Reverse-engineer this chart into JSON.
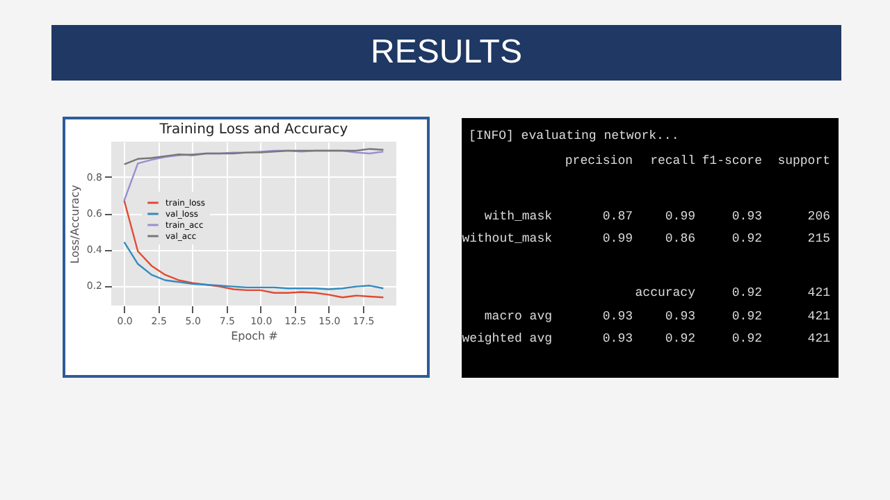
{
  "chart_data": [
    {
      "type": "line",
      "title": "Training Loss and Accuracy",
      "xlabel": "Epoch #",
      "ylabel": "Loss/Accuracy",
      "x": [
        0,
        1,
        2,
        3,
        4,
        5,
        6,
        7,
        8,
        9,
        10,
        11,
        12,
        13,
        14,
        15,
        16,
        17,
        18,
        19
      ],
      "series": [
        {
          "name": "train_loss",
          "color": "#e24a33",
          "values": [
            0.67,
            0.39,
            0.31,
            0.26,
            0.23,
            0.215,
            0.205,
            0.195,
            0.18,
            0.175,
            0.175,
            0.16,
            0.16,
            0.165,
            0.16,
            0.15,
            0.135,
            0.145,
            0.14,
            0.135
          ]
        },
        {
          "name": "val_loss",
          "color": "#348abd",
          "values": [
            0.44,
            0.32,
            0.26,
            0.23,
            0.22,
            0.21,
            0.205,
            0.2,
            0.195,
            0.19,
            0.19,
            0.19,
            0.185,
            0.185,
            0.185,
            0.18,
            0.185,
            0.195,
            0.2,
            0.185
          ]
        },
        {
          "name": "train_acc",
          "color": "#988ed5",
          "values": [
            0.67,
            0.875,
            0.895,
            0.91,
            0.92,
            0.925,
            0.93,
            0.93,
            0.935,
            0.935,
            0.94,
            0.945,
            0.945,
            0.94,
            0.945,
            0.945,
            0.945,
            0.935,
            0.93,
            0.94
          ]
        },
        {
          "name": "val_acc",
          "color": "#777777",
          "values": [
            0.87,
            0.9,
            0.905,
            0.915,
            0.925,
            0.92,
            0.93,
            0.93,
            0.93,
            0.935,
            0.935,
            0.94,
            0.945,
            0.945,
            0.945,
            0.945,
            0.945,
            0.945,
            0.955,
            0.95
          ]
        }
      ],
      "xlim": [
        -0.95,
        19.95
      ],
      "ylim": [
        0.09,
        0.995
      ],
      "xticks": [
        {
          "value": 0,
          "label": "0.0"
        },
        2.5,
        {
          "value": 5,
          "label": "5.0"
        },
        7.5,
        {
          "value": 10,
          "label": "10.0"
        },
        12.5,
        {
          "value": 15,
          "label": "15.0"
        },
        17.5
      ],
      "yticks": [
        0.2,
        0.4,
        0.6,
        0.8
      ],
      "grid": true,
      "legend": "left"
    },
    {
      "type": "other",
      "title": "RESULTS",
      "annotations": [
        "[INFO] evaluating network...",
        "   precision    recall  f1-score   support",
        "   with_mask       0.87      0.99      0.93       206",
        "without_mask       0.99      0.86      0.92       215",
        "    accuracy                           0.92       421",
        "   macro avg       0.93      0.93      0.92       421",
        "weighted avg       0.93      0.92      0.92       421"
      ]
    }
  ]
}
